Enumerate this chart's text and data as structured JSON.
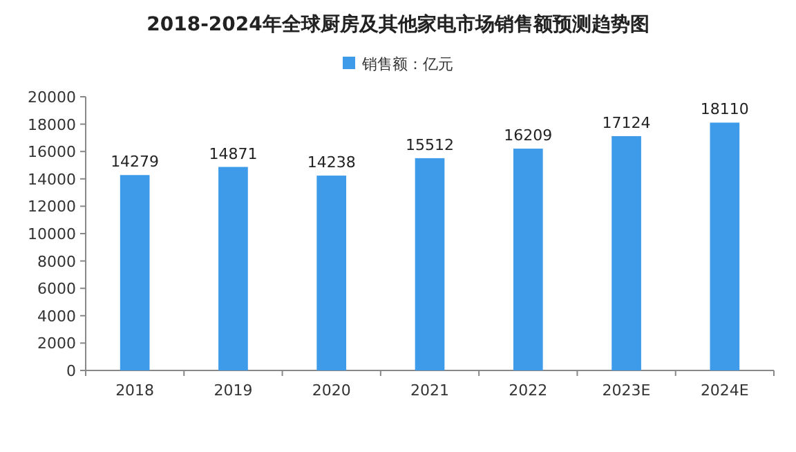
{
  "chart_data": {
    "type": "bar",
    "title": "2018-2024年全球厨房及其他家电市场销售额预测趋势图",
    "categories": [
      "2018",
      "2019",
      "2020",
      "2021",
      "2022",
      "2023E",
      "2024E"
    ],
    "series": [
      {
        "name": "销售额：亿元",
        "color": "#3d9be9",
        "values": [
          14279,
          14871,
          14238,
          15512,
          16209,
          17124,
          18110
        ]
      }
    ],
    "ylim": [
      0,
      20000
    ],
    "yticks": [
      0,
      2000,
      4000,
      6000,
      8000,
      10000,
      12000,
      14000,
      16000,
      18000,
      20000
    ],
    "data_labels": true,
    "legend": "top",
    "grid": false
  }
}
